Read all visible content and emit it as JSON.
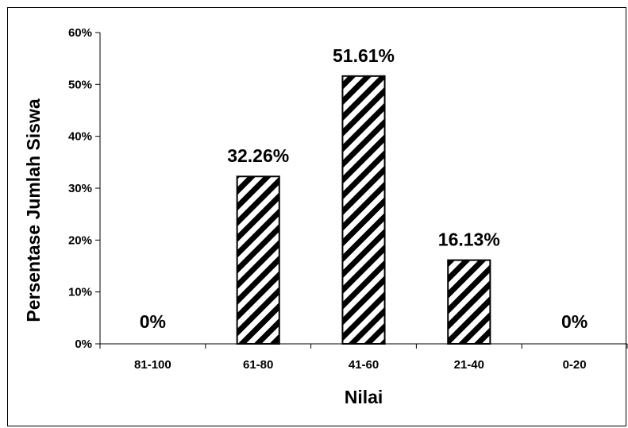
{
  "chart_data": {
    "type": "bar",
    "categories": [
      "81-100",
      "61-80",
      "41-60",
      "21-40",
      "0-20"
    ],
    "values": [
      0,
      32.26,
      51.61,
      16.13,
      0
    ],
    "data_labels": [
      "0%",
      "32.26%",
      "51.61%",
      "16.13%",
      "0%"
    ],
    "xlabel": "Nilai",
    "ylabel": "Persentase Jumlah Siswa",
    "ylim": [
      0,
      60
    ],
    "yticks": [
      0,
      10,
      20,
      30,
      40,
      50,
      60
    ],
    "ytick_labels": [
      "0%",
      "10%",
      "20%",
      "30%",
      "40%",
      "50%",
      "60%"
    ],
    "bar_fill": "diagonal-hatch",
    "bar_color": "#000000",
    "background": "#ffffff",
    "grid": false,
    "legend": "none"
  }
}
